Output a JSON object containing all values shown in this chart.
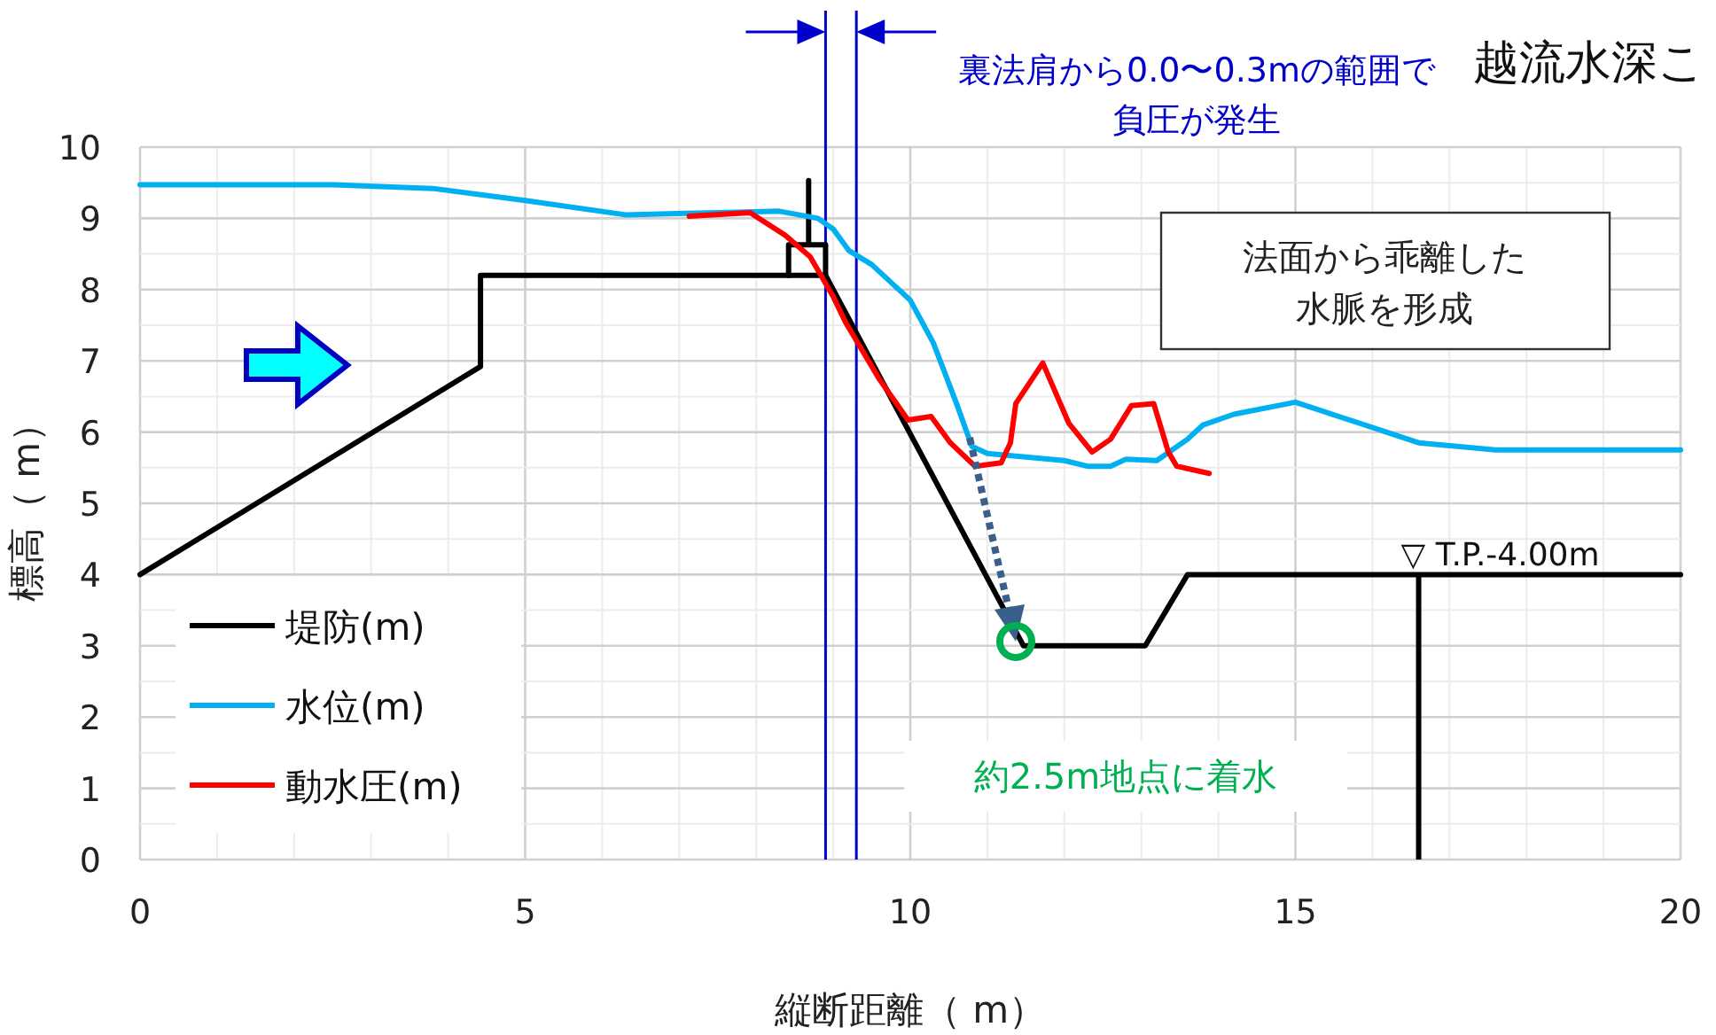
{
  "chart_data": {
    "type": "line",
    "title": "越流水深こ",
    "xlabel": "縦断距離（ m）",
    "ylabel": "標高（ m）",
    "xlim": [
      0,
      20
    ],
    "ylim": [
      0,
      10
    ],
    "xticks": [
      0,
      5,
      10,
      15,
      20
    ],
    "yticks": [
      0,
      1,
      2,
      3,
      4,
      5,
      6,
      7,
      8,
      9,
      10
    ],
    "grid": true,
    "legend": "bottom left",
    "marker": "none",
    "series": [
      {
        "name": "堤防(m)",
        "color": "#000000",
        "x": [
          0,
          4.42,
          4.42,
          8.9,
          11.47,
          13.05,
          13.6,
          20
        ],
        "values": [
          4,
          6.92,
          8.2,
          8.2,
          3.0,
          3.0,
          4.0,
          4.0
        ]
      },
      {
        "color": "#000000",
        "x": [
          8.42,
          8.42,
          8.68,
          8.68,
          8.68,
          8.9,
          8.9
        ],
        "values": [
          8.2,
          8.63,
          8.63,
          9.53,
          8.63,
          8.63,
          8.2
        ]
      },
      {
        "name": "水位(m)",
        "color": "#00b0f0",
        "x": [
          0,
          2.5,
          3.8,
          5,
          6.3,
          7.5,
          8.3,
          8.8,
          9.0,
          9.2,
          9.5,
          10,
          10.3,
          10.6,
          10.8,
          11,
          11.5,
          12,
          12.3,
          12.6,
          12.8,
          13.2,
          13.6,
          13.8,
          14.2,
          15,
          16.6,
          17.6,
          20
        ],
        "values": [
          9.47,
          9.47,
          9.42,
          9.25,
          9.05,
          9.08,
          9.1,
          9.0,
          8.85,
          8.55,
          8.35,
          7.85,
          7.25,
          6.4,
          5.8,
          5.7,
          5.65,
          5.6,
          5.52,
          5.52,
          5.62,
          5.6,
          5.9,
          6.1,
          6.25,
          6.42,
          5.85,
          5.75,
          5.75
        ]
      },
      {
        "name": "動水圧(m)",
        "color": "#ff0000",
        "x": [
          7.13,
          7.92,
          8.38,
          8.7,
          9.0,
          9.16,
          9.6,
          9.97,
          10.27,
          10.52,
          10.84,
          11.18,
          11.3,
          11.37,
          11.72,
          12.06,
          12.36,
          12.6,
          12.87,
          13.16,
          13.35,
          13.46,
          13.88
        ],
        "values": [
          9.03,
          9.08,
          8.76,
          8.46,
          7.9,
          7.54,
          6.74,
          6.17,
          6.22,
          5.85,
          5.52,
          5.57,
          5.85,
          6.4,
          6.97,
          6.12,
          5.72,
          5.9,
          6.37,
          6.4,
          5.72,
          5.52,
          5.42
        ]
      }
    ],
    "ref_lines": [
      {
        "axis": "x",
        "value": 8.9,
        "color": "#0000cc"
      },
      {
        "axis": "x",
        "value": 9.3,
        "color": "#0000cc"
      }
    ],
    "annotations": [
      {
        "text": "▽ T.P.-4.00m",
        "x": 16.6,
        "y": 4
      },
      "約2.5m地点に着水",
      "法面から乖離した水脈を形成",
      "裏法肩から0.0〜0.3mの範囲で負圧が発生"
    ]
  }
}
